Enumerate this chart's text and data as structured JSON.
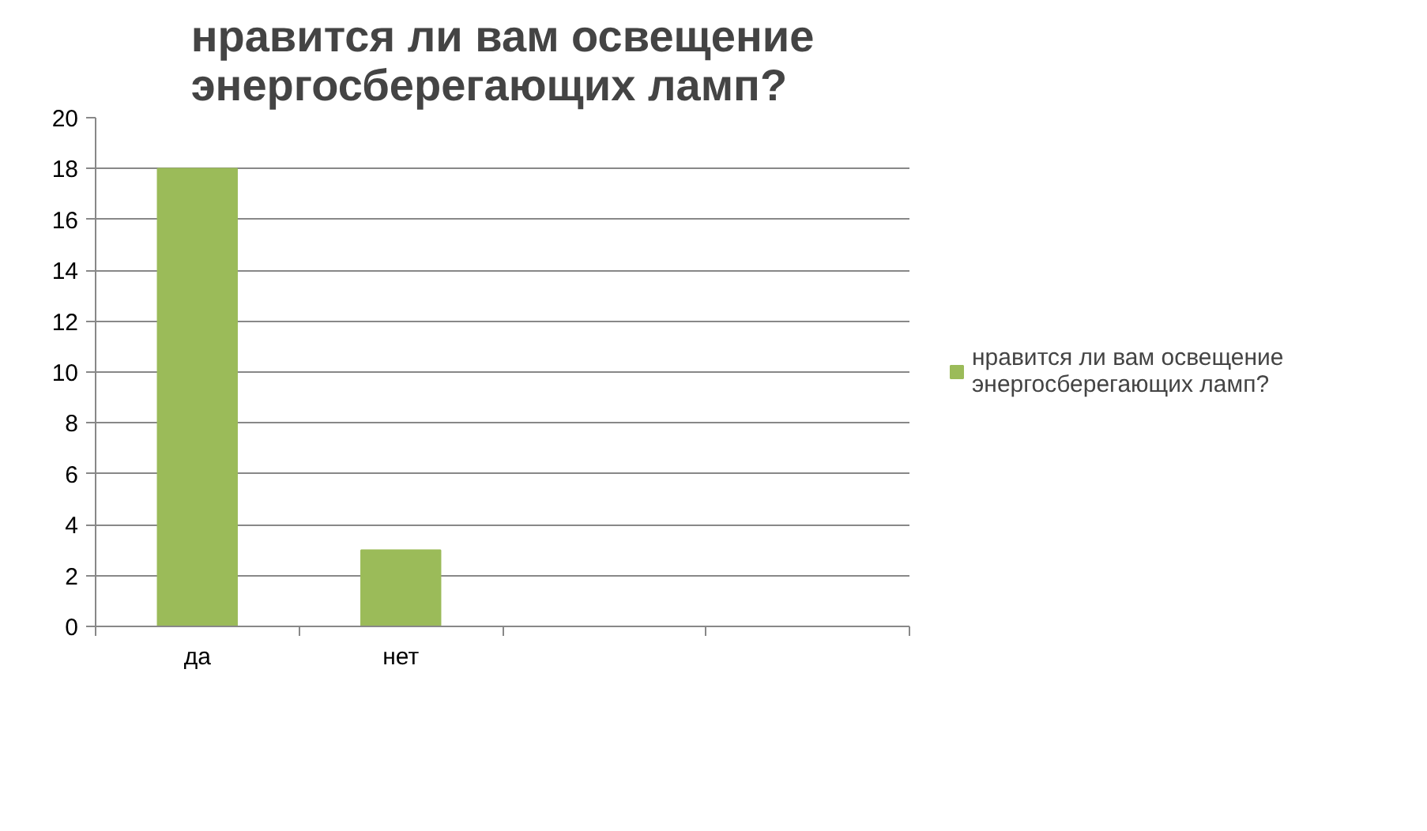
{
  "chart_data": {
    "type": "bar",
    "title": "нравится ли вам освещение энергосберегающих ламп?",
    "categories": [
      "да",
      "нет",
      null,
      null
    ],
    "series": [
      {
        "name": "нравится ли вам освещение энергосберегающих ламп?",
        "color": "#9bbb59",
        "values": [
          18,
          3,
          null,
          null
        ]
      }
    ],
    "ylim": [
      0,
      20
    ],
    "yticks": [
      0,
      2,
      4,
      6,
      8,
      10,
      12,
      14,
      16,
      18,
      20
    ],
    "grid": "y",
    "legend": "right"
  }
}
